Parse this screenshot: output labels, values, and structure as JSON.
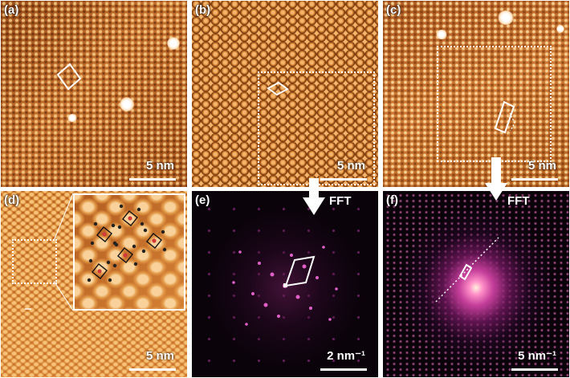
{
  "figure": {
    "panels": [
      {
        "id": "a",
        "label": "(a)",
        "type": "STM image",
        "scale": "5 nm"
      },
      {
        "id": "b",
        "label": "(b)",
        "type": "STM image",
        "scale": "5 nm"
      },
      {
        "id": "c",
        "label": "(c)",
        "type": "STM image",
        "scale": "5 nm"
      },
      {
        "id": "d",
        "label": "(d)",
        "type": "STM image with inset",
        "scale": "5 nm"
      },
      {
        "id": "e",
        "label": "(e)",
        "type": "FFT",
        "scale": "2 nm⁻¹"
      },
      {
        "id": "f",
        "label": "(f)",
        "type": "FFT",
        "scale": "5 nm⁻¹"
      }
    ],
    "arrows": [
      {
        "from": "b",
        "to": "e",
        "text": "FFT"
      },
      {
        "from": "c",
        "to": "f",
        "text": "FFT"
      }
    ]
  },
  "colors": {
    "stm_orange": "#c0692a",
    "fft_bg": "#0a030a",
    "fft_spot": "#e060c8",
    "overlay": "#ffffff"
  }
}
